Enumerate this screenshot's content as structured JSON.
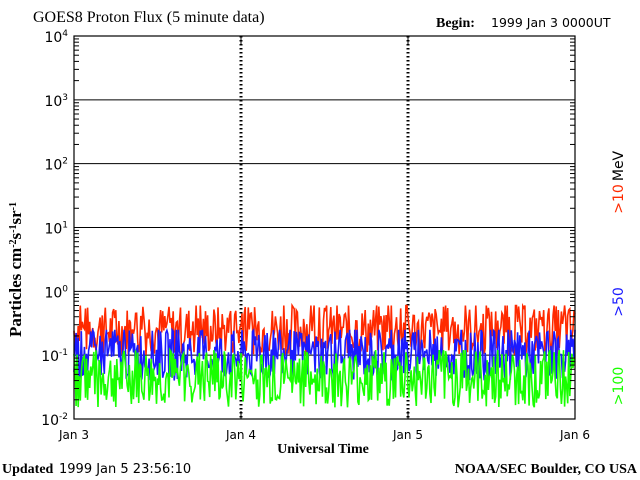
{
  "header": {
    "title": "GOES8 Proton Flux (5 minute data)",
    "begin_label": "Begin:",
    "begin_value": "1999 Jan 3 0000UT"
  },
  "footer": {
    "updated_label": "Updated",
    "updated_value": "1999 Jan  5 23:56:10",
    "credit": "NOAA/SEC Boulder, CO USA"
  },
  "chart_data": {
    "type": "line",
    "title": "GOES8 Proton Flux (5 minute data)",
    "xlabel": "Universal Time",
    "ylabel": "Particles cm-2s-1sr-1",
    "y_scale": "log",
    "ylim": [
      0.01,
      10000
    ],
    "x_range": [
      "Jan 3",
      "Jan 6"
    ],
    "x_ticks": [
      "Jan 3",
      "Jan 4",
      "Jan 5",
      "Jan 6"
    ],
    "y_ticks": [
      {
        "base": "10",
        "exp": "-2"
      },
      {
        "base": "10",
        "exp": "-1"
      },
      {
        "base": "10",
        "exp": "0"
      },
      {
        "base": "10",
        "exp": "1"
      },
      {
        "base": "10",
        "exp": "2"
      },
      {
        "base": "10",
        "exp": "3"
      },
      {
        "base": "10",
        "exp": "4"
      }
    ],
    "ylabel_parts": {
      "main": "Particles cm",
      "e1": "-2",
      "s": "s",
      "e2": "-1",
      "sr": "sr",
      "e3": "-1"
    },
    "grid": true,
    "legend_position": "right-vertical",
    "legend_unit": "MeV",
    "series": [
      {
        "name": ">10",
        "color": "#ff2a00",
        "typical_range": [
          0.1,
          0.6
        ]
      },
      {
        "name": ">50",
        "color": "#1a1aff",
        "typical_range": [
          0.04,
          0.25
        ]
      },
      {
        "name": ">100",
        "color": "#19ff00",
        "typical_range": [
          0.015,
          0.12
        ]
      }
    ]
  }
}
